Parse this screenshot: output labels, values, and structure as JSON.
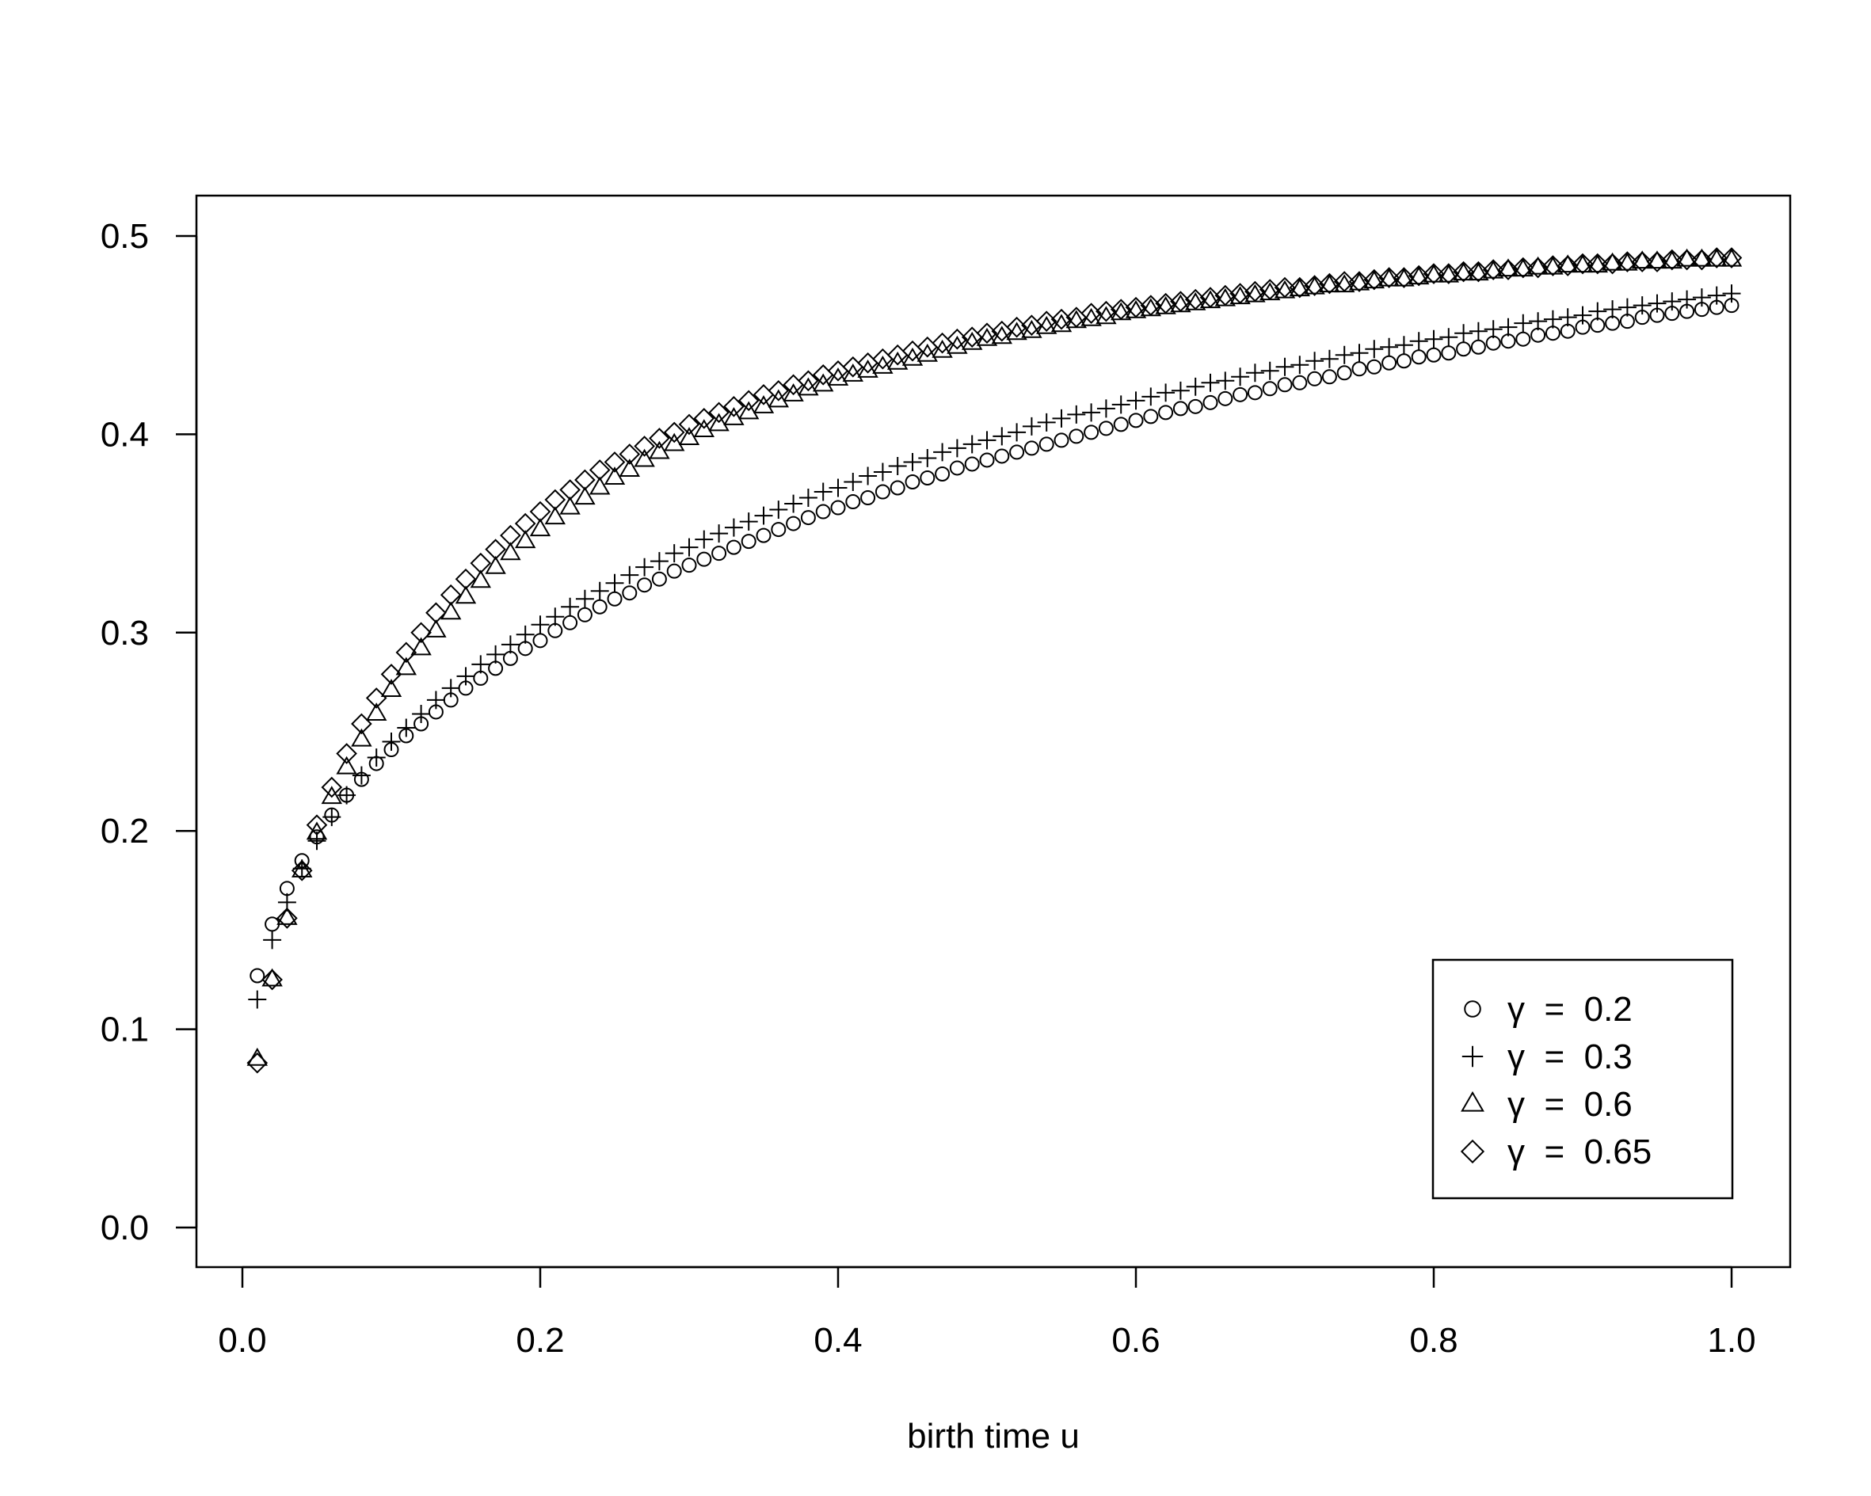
{
  "chart_data": {
    "type": "scatter",
    "title": "",
    "xlabel": "birth time u",
    "ylabel": "",
    "xlim": [
      -0.03,
      1.04
    ],
    "ylim": [
      -0.02,
      0.52
    ],
    "xticks": [
      0.0,
      0.2,
      0.4,
      0.6,
      0.8,
      1.0
    ],
    "xtick_labels": [
      "0.0",
      "0.2",
      "0.4",
      "0.6",
      "0.8",
      "1.0"
    ],
    "yticks": [
      0.0,
      0.1,
      0.2,
      0.3,
      0.4,
      0.5
    ],
    "ytick_labels": [
      "0.0",
      "0.1",
      "0.2",
      "0.3",
      "0.4",
      "0.5"
    ],
    "grid": false,
    "legend_position": "bottom-right",
    "colors": {
      "ink": "#000000",
      "background": "#ffffff"
    },
    "x": [
      0.01,
      0.02,
      0.03,
      0.04,
      0.05,
      0.06,
      0.07,
      0.08,
      0.09,
      0.1,
      0.11,
      0.12,
      0.13,
      0.14,
      0.15,
      0.16,
      0.17,
      0.18,
      0.19,
      0.2,
      0.21,
      0.22,
      0.23,
      0.24,
      0.25,
      0.26,
      0.27,
      0.28,
      0.29,
      0.3,
      0.31,
      0.32,
      0.33,
      0.34,
      0.35,
      0.36,
      0.37,
      0.38,
      0.39,
      0.4,
      0.41,
      0.42,
      0.43,
      0.44,
      0.45,
      0.46,
      0.47,
      0.48,
      0.49,
      0.5,
      0.51,
      0.52,
      0.53,
      0.54,
      0.55,
      0.56,
      0.57,
      0.58,
      0.59,
      0.6,
      0.61,
      0.62,
      0.63,
      0.64,
      0.65,
      0.66,
      0.67,
      0.68,
      0.69,
      0.7,
      0.71,
      0.72,
      0.73,
      0.74,
      0.75,
      0.76,
      0.77,
      0.78,
      0.79,
      0.8,
      0.81,
      0.82,
      0.83,
      0.84,
      0.85,
      0.86,
      0.87,
      0.88,
      0.89,
      0.9,
      0.91,
      0.92,
      0.93,
      0.94,
      0.95,
      0.96,
      0.97,
      0.98,
      0.99,
      1.0
    ],
    "series": [
      {
        "name": "γ = 0.2",
        "marker": "circle",
        "values": [
          0.127,
          0.153,
          0.171,
          0.185,
          0.197,
          0.208,
          0.218,
          0.226,
          0.234,
          0.241,
          0.248,
          0.254,
          0.26,
          0.266,
          0.272,
          0.277,
          0.282,
          0.287,
          0.292,
          0.296,
          0.301,
          0.305,
          0.309,
          0.313,
          0.317,
          0.32,
          0.324,
          0.327,
          0.331,
          0.334,
          0.337,
          0.34,
          0.343,
          0.346,
          0.349,
          0.352,
          0.355,
          0.358,
          0.361,
          0.363,
          0.366,
          0.368,
          0.371,
          0.373,
          0.376,
          0.378,
          0.38,
          0.383,
          0.385,
          0.387,
          0.389,
          0.391,
          0.393,
          0.395,
          0.397,
          0.399,
          0.401,
          0.403,
          0.405,
          0.407,
          0.409,
          0.411,
          0.413,
          0.414,
          0.416,
          0.418,
          0.42,
          0.421,
          0.423,
          0.425,
          0.426,
          0.428,
          0.429,
          0.431,
          0.433,
          0.434,
          0.436,
          0.437,
          0.439,
          0.44,
          0.441,
          0.443,
          0.444,
          0.446,
          0.447,
          0.448,
          0.45,
          0.451,
          0.452,
          0.454,
          0.455,
          0.456,
          0.457,
          0.459,
          0.46,
          0.461,
          0.462,
          0.463,
          0.464,
          0.465
        ]
      },
      {
        "name": "γ = 0.3",
        "marker": "plus",
        "values": [
          0.115,
          0.145,
          0.164,
          0.181,
          0.195,
          0.207,
          0.218,
          0.228,
          0.237,
          0.245,
          0.252,
          0.259,
          0.266,
          0.272,
          0.278,
          0.284,
          0.289,
          0.294,
          0.299,
          0.304,
          0.308,
          0.313,
          0.317,
          0.321,
          0.325,
          0.329,
          0.333,
          0.336,
          0.34,
          0.343,
          0.347,
          0.35,
          0.353,
          0.356,
          0.359,
          0.362,
          0.365,
          0.368,
          0.371,
          0.373,
          0.376,
          0.379,
          0.381,
          0.384,
          0.386,
          0.388,
          0.391,
          0.393,
          0.395,
          0.397,
          0.399,
          0.401,
          0.404,
          0.406,
          0.408,
          0.41,
          0.411,
          0.413,
          0.415,
          0.417,
          0.419,
          0.421,
          0.422,
          0.424,
          0.426,
          0.427,
          0.429,
          0.431,
          0.432,
          0.434,
          0.435,
          0.437,
          0.438,
          0.44,
          0.441,
          0.443,
          0.444,
          0.445,
          0.447,
          0.448,
          0.449,
          0.451,
          0.452,
          0.453,
          0.454,
          0.456,
          0.457,
          0.458,
          0.459,
          0.46,
          0.462,
          0.463,
          0.464,
          0.465,
          0.466,
          0.467,
          0.468,
          0.469,
          0.47,
          0.471
        ]
      },
      {
        "name": "γ = 0.6",
        "marker": "triangle",
        "values": [
          0.085,
          0.125,
          0.156,
          0.18,
          0.199,
          0.217,
          0.232,
          0.246,
          0.259,
          0.271,
          0.282,
          0.292,
          0.301,
          0.31,
          0.318,
          0.326,
          0.333,
          0.34,
          0.346,
          0.352,
          0.358,
          0.363,
          0.368,
          0.373,
          0.378,
          0.382,
          0.387,
          0.391,
          0.395,
          0.398,
          0.402,
          0.405,
          0.408,
          0.411,
          0.414,
          0.417,
          0.42,
          0.423,
          0.425,
          0.428,
          0.43,
          0.432,
          0.434,
          0.436,
          0.438,
          0.44,
          0.442,
          0.444,
          0.446,
          0.448,
          0.449,
          0.451,
          0.452,
          0.454,
          0.455,
          0.457,
          0.458,
          0.459,
          0.461,
          0.462,
          0.463,
          0.464,
          0.465,
          0.466,
          0.467,
          0.468,
          0.469,
          0.47,
          0.471,
          0.472,
          0.473,
          0.474,
          0.475,
          0.475,
          0.476,
          0.477,
          0.478,
          0.478,
          0.479,
          0.48,
          0.48,
          0.481,
          0.481,
          0.482,
          0.483,
          0.483,
          0.484,
          0.484,
          0.485,
          0.485,
          0.485,
          0.486,
          0.486,
          0.487,
          0.487,
          0.487,
          0.488,
          0.488,
          0.488,
          0.488
        ]
      },
      {
        "name": "γ = 0.65",
        "marker": "diamond",
        "values": [
          0.083,
          0.125,
          0.156,
          0.18,
          0.203,
          0.222,
          0.239,
          0.254,
          0.267,
          0.279,
          0.29,
          0.3,
          0.31,
          0.319,
          0.327,
          0.335,
          0.342,
          0.349,
          0.355,
          0.361,
          0.367,
          0.372,
          0.377,
          0.382,
          0.386,
          0.39,
          0.394,
          0.398,
          0.401,
          0.405,
          0.408,
          0.411,
          0.414,
          0.417,
          0.42,
          0.422,
          0.425,
          0.427,
          0.43,
          0.432,
          0.434,
          0.436,
          0.438,
          0.44,
          0.442,
          0.444,
          0.446,
          0.448,
          0.449,
          0.451,
          0.452,
          0.454,
          0.455,
          0.457,
          0.458,
          0.459,
          0.461,
          0.462,
          0.463,
          0.464,
          0.465,
          0.466,
          0.467,
          0.468,
          0.469,
          0.47,
          0.471,
          0.472,
          0.473,
          0.474,
          0.474,
          0.475,
          0.476,
          0.477,
          0.477,
          0.478,
          0.479,
          0.479,
          0.48,
          0.481,
          0.481,
          0.482,
          0.482,
          0.483,
          0.483,
          0.484,
          0.484,
          0.485,
          0.485,
          0.486,
          0.486,
          0.486,
          0.487,
          0.487,
          0.487,
          0.488,
          0.488,
          0.488,
          0.489,
          0.489
        ]
      }
    ],
    "legend": [
      {
        "marker": "circle",
        "label": "γ  =  0.2"
      },
      {
        "marker": "plus",
        "label": "γ  =  0.3"
      },
      {
        "marker": "triangle",
        "label": "γ  =  0.6"
      },
      {
        "marker": "diamond",
        "label": "γ  =  0.65"
      }
    ]
  }
}
